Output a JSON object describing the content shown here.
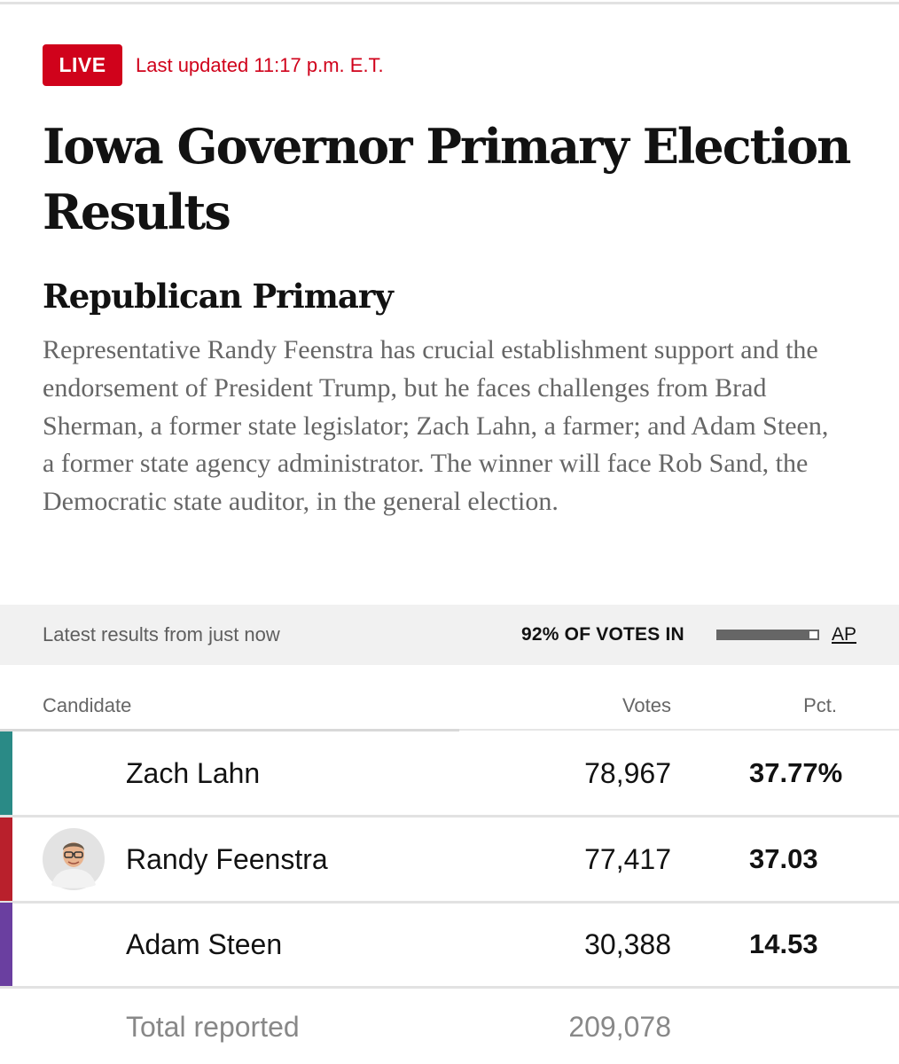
{
  "header": {
    "live_label": "LIVE",
    "last_updated": "Last updated 11:17 p.m. E.T."
  },
  "title": "Iowa Governor Primary Election Results",
  "section": {
    "title": "Republican Primary",
    "summary": "Representative Randy Feenstra has crucial establishment support and the endorsement of President Trump, but he faces challenges from Brad Sherman, a former state legislator; Zach Lahn, a farmer; and Adam Steen, a former state agency administrator. The winner will face Rob Sand, the Democratic state auditor, in the general election."
  },
  "status": {
    "latest": "Latest results from just now",
    "votes_in_label": "92% OF VOTES IN",
    "votes_in_fraction": 0.92,
    "source": "AP"
  },
  "table": {
    "headers": {
      "candidate": "Candidate",
      "votes": "Votes",
      "pct": "Pct."
    },
    "rows": [
      {
        "name": "Zach Lahn",
        "votes": "78,967",
        "pct": "37.77%",
        "party_color": "#2a8a86",
        "avatar": "none"
      },
      {
        "name": "Randy Feenstra",
        "votes": "77,417",
        "pct": "37.03",
        "party_color": "#b9202c",
        "avatar": "candidate-photo"
      },
      {
        "name": "Adam Steen",
        "votes": "30,388",
        "pct": "14.53",
        "party_color": "#6a3fa0",
        "avatar": "none"
      }
    ],
    "total_label": "Total reported",
    "total_votes": "209,078"
  }
}
